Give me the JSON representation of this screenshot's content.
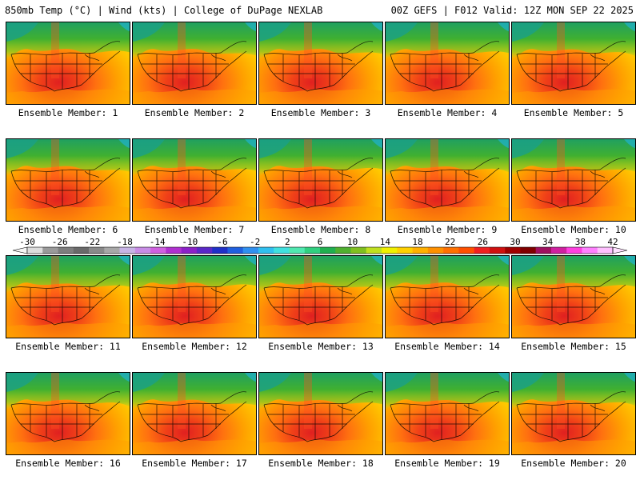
{
  "header": {
    "left": "850mb Temp (°C) | Wind (kts) | College of DuPage NEXLAB",
    "right": "00Z GEFS | F012 Valid: 12Z MON SEP 22 2025"
  },
  "members": [
    "Ensemble Member: 1",
    "Ensemble Member: 2",
    "Ensemble Member: 3",
    "Ensemble Member: 4",
    "Ensemble Member: 5",
    "Ensemble Member: 6",
    "Ensemble Member: 7",
    "Ensemble Member: 8",
    "Ensemble Member: 9",
    "Ensemble Member: 10",
    "Ensemble Member: 11",
    "Ensemble Member: 12",
    "Ensemble Member: 13",
    "Ensemble Member: 14",
    "Ensemble Member: 15",
    "Ensemble Member: 16",
    "Ensemble Member: 17",
    "Ensemble Member: 18",
    "Ensemble Member: 19",
    "Ensemble Member: 20"
  ],
  "colorbar": {
    "labels": [
      "-30",
      "-26",
      "-22",
      "-18",
      "-14",
      "-10",
      "-6",
      "-2",
      "2",
      "6",
      "10",
      "14",
      "18",
      "22",
      "26",
      "30",
      "34",
      "38",
      "42"
    ],
    "colors": [
      "#dcdcdc",
      "#9a9a9a",
      "#7e7e7e",
      "#6a6a6a",
      "#8a8a8a",
      "#a8a8a8",
      "#c8b4e6",
      "#c88ce6",
      "#d060e0",
      "#b030d0",
      "#8c20c8",
      "#5a28c8",
      "#2030c8",
      "#2060e0",
      "#3090f0",
      "#30c0f0",
      "#40e0e0",
      "#50e8b0",
      "#30d080",
      "#20b050",
      "#50b030",
      "#80c020",
      "#c0e020",
      "#f0f000",
      "#ffd000",
      "#ffb000",
      "#ff9000",
      "#ff7000",
      "#ff5000",
      "#f02020",
      "#d01010",
      "#a00000",
      "#800000",
      "#a01060",
      "#d020a0",
      "#ff40e0",
      "#ff80ff",
      "#ffc0ff"
    ]
  }
}
